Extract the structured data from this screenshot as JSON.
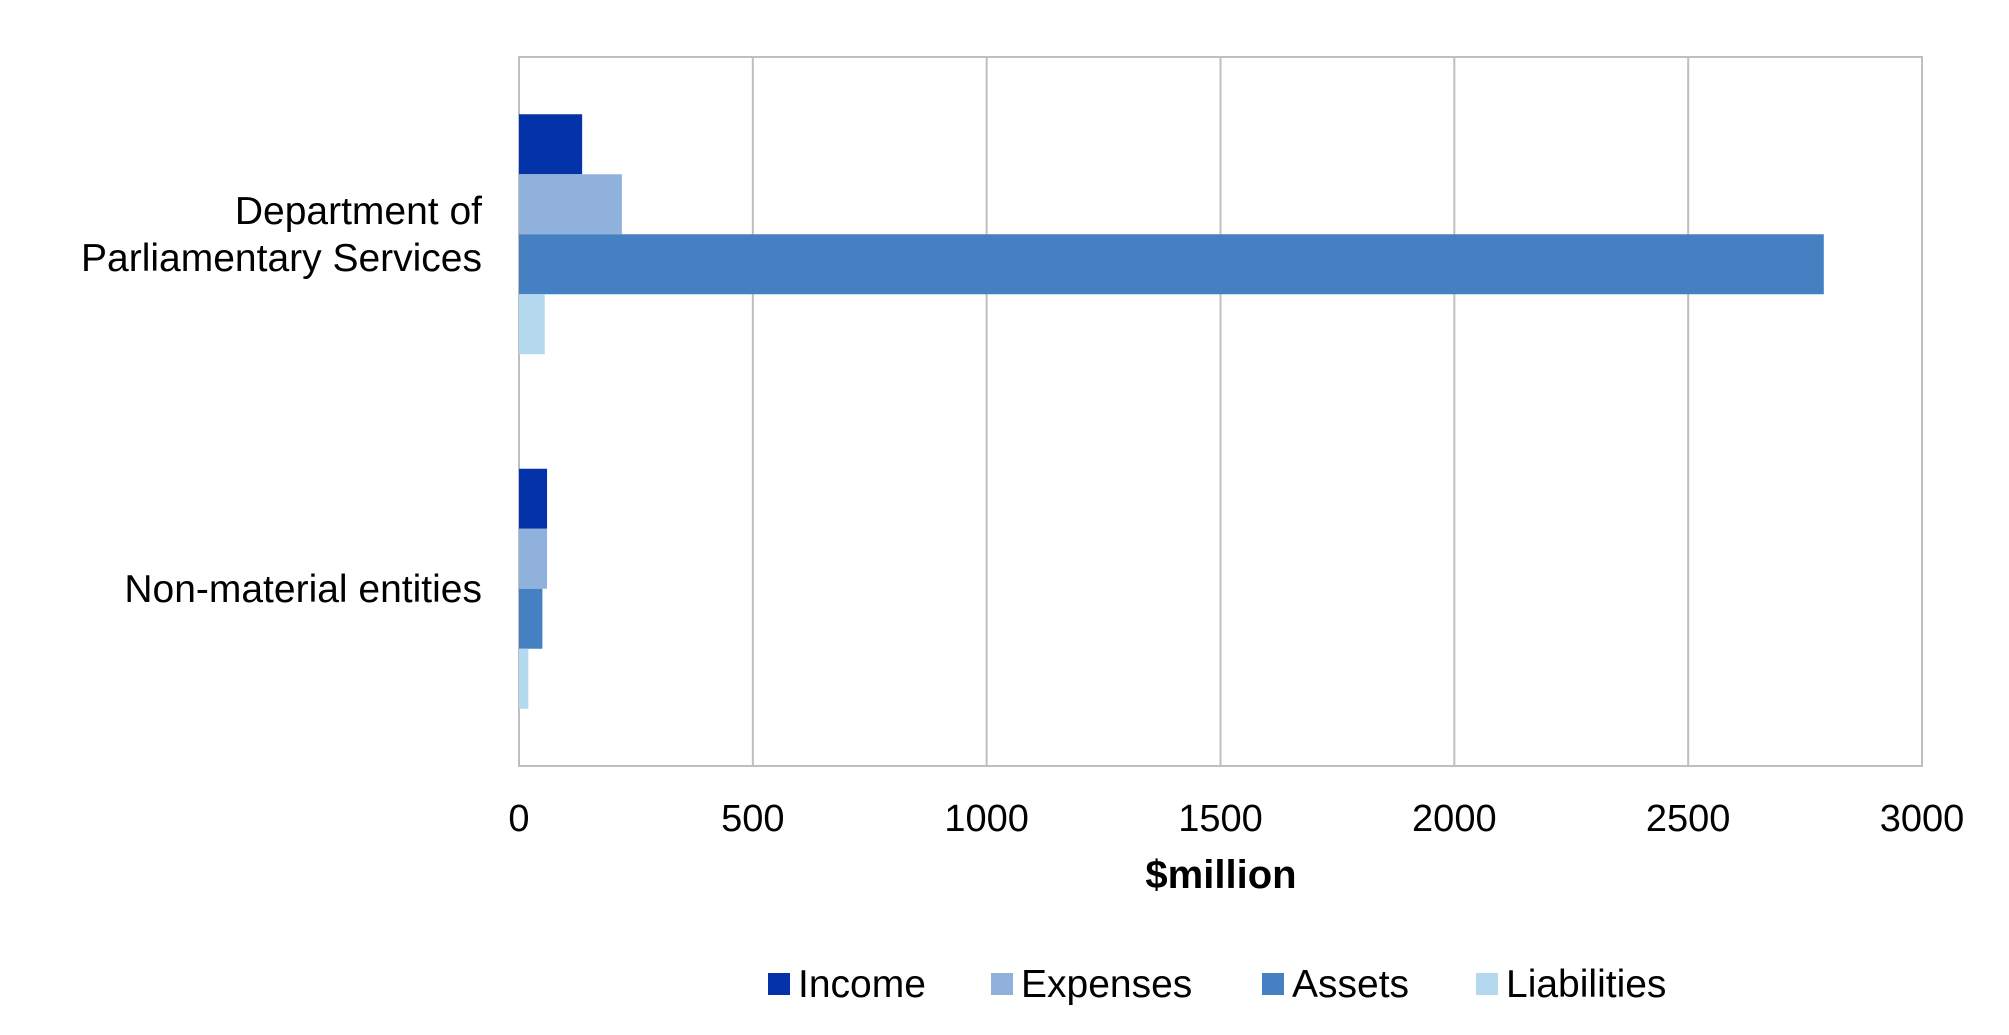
{
  "chart_data": {
    "type": "bar",
    "orientation": "horizontal",
    "categories": [
      "Department of Parliamentary Services",
      "Non-material entities"
    ],
    "category_label_lines": [
      [
        "Department of",
        "Parliamentary Services"
      ],
      [
        "Non-material entities"
      ]
    ],
    "series": [
      {
        "name": "Income",
        "values": [
          135,
          60
        ],
        "color": "#0432A8"
      },
      {
        "name": "Expenses",
        "values": [
          220,
          60
        ],
        "color": "#8FB1DB"
      },
      {
        "name": "Assets",
        "values": [
          2790,
          50
        ],
        "color": "#4580C2"
      },
      {
        "name": "Liabilities",
        "values": [
          55,
          20
        ],
        "color": "#B4D8EE"
      }
    ],
    "xlabel": "$million",
    "ylabel": "",
    "xlim": [
      0,
      3000
    ],
    "x_ticks": [
      "0",
      "500",
      "1000",
      "1500",
      "2000",
      "2500",
      "3000"
    ],
    "grid": "vertical",
    "legend_position": "bottom"
  }
}
